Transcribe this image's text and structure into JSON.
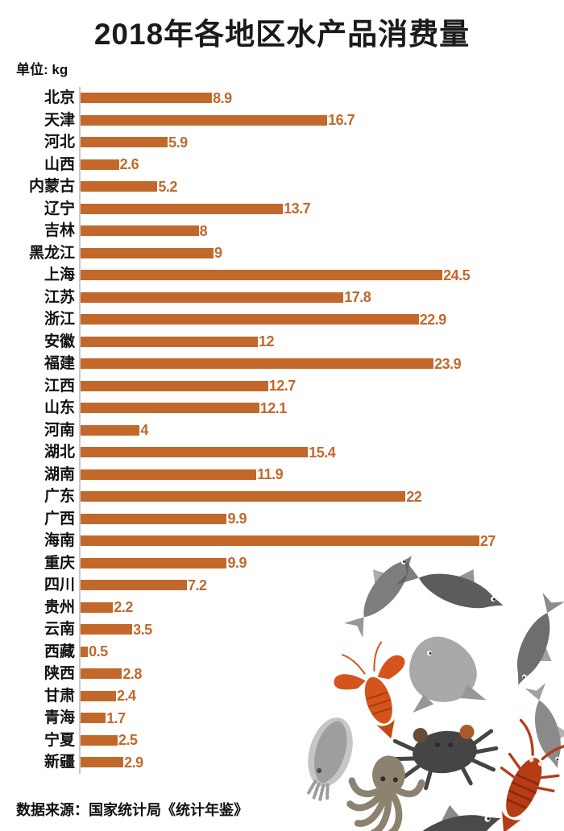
{
  "title": "2018年各地区水产品消费量",
  "unit_label": "单位: kg",
  "source": "数据来源：国家统计局《统计年鉴》",
  "colors": {
    "bar": "#c2682b",
    "value_text": "#c2682b",
    "title_text": "#1b1b1b",
    "axis_line": "#c9c9c9",
    "background": "#ffffff",
    "crayfish_orange": "#d4541c",
    "lobster_red": "#b63b17",
    "fish_gray": "#7a7a7a"
  },
  "chart_data": {
    "type": "bar",
    "orientation": "horizontal",
    "title": "2018年各地区水产品消费量",
    "unit": "kg",
    "xlabel": "",
    "ylabel": "",
    "xlim": [
      0,
      27
    ],
    "grid": false,
    "legend": false,
    "categories": [
      "北京",
      "天津",
      "河北",
      "山西",
      "内蒙古",
      "辽宁",
      "吉林",
      "黑龙江",
      "上海",
      "江苏",
      "浙江",
      "安徽",
      "福建",
      "江西",
      "山东",
      "河南",
      "湖北",
      "湖南",
      "广东",
      "广西",
      "海南",
      "重庆",
      "四川",
      "贵州",
      "云南",
      "西藏",
      "陕西",
      "甘肃",
      "青海",
      "宁夏",
      "新疆"
    ],
    "values": [
      8.9,
      16.7,
      5.9,
      2.6,
      5.2,
      13.7,
      8,
      9,
      24.5,
      17.8,
      22.9,
      12,
      23.9,
      12.7,
      12.1,
      4,
      15.4,
      11.9,
      22,
      9.9,
      27,
      9.9,
      7.2,
      2.2,
      3.5,
      0.5,
      2.8,
      2.4,
      1.7,
      2.5,
      2.9
    ],
    "value_labels": [
      "8.9",
      "16.7",
      "5.9",
      "2.6",
      "5.2",
      "13.7",
      "8",
      "9",
      "24.5",
      "17.8",
      "22.9",
      "12",
      "23.9",
      "12.7",
      "12.1",
      "4",
      "15.4",
      "11.9",
      "22",
      "9.9",
      "27",
      "9.9",
      "7.2",
      "2.2",
      "3.5",
      "0.5",
      "2.8",
      "2.4",
      "1.7",
      "2.5",
      "2.9"
    ]
  },
  "decor": {
    "collage_description": "seafood photo collage",
    "collage_items": [
      "fish",
      "fish",
      "fish",
      "pomfret-fish",
      "fish",
      "crayfish",
      "crab",
      "cuttlefish",
      "octopus",
      "lobster",
      "fish-head"
    ]
  }
}
